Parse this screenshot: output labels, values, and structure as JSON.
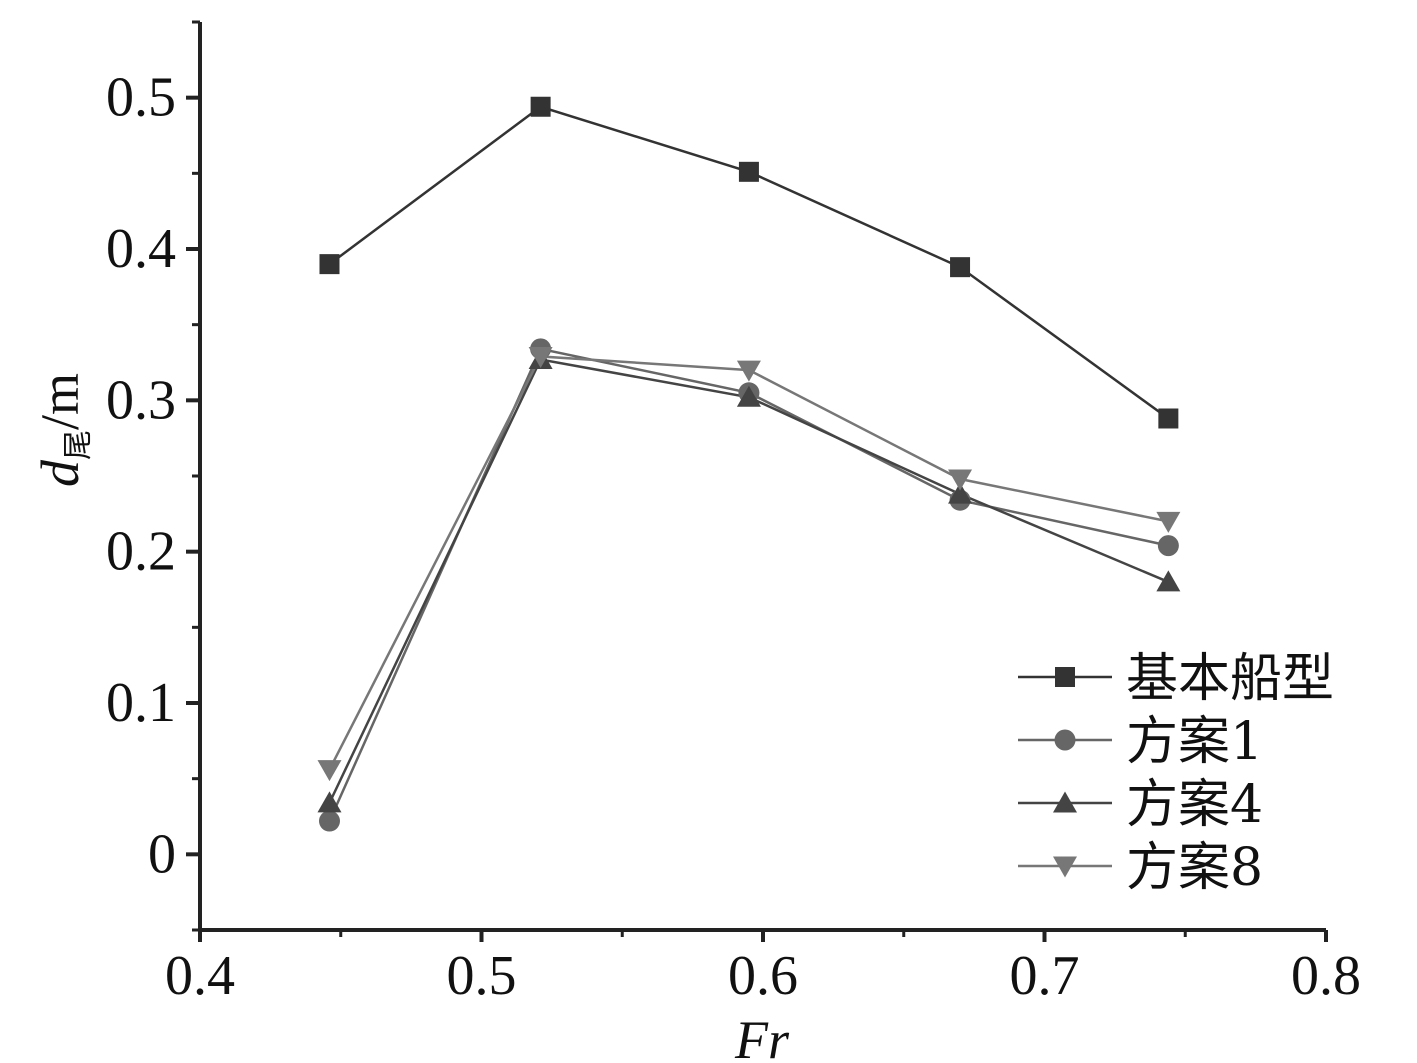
{
  "chart_data": {
    "type": "line",
    "xlabel": "Fr",
    "ylabel": {
      "main": "d",
      "subscript": "尾",
      "unit": "/m"
    },
    "xlim": [
      0.4,
      0.8
    ],
    "ylim": [
      -0.05,
      0.55
    ],
    "xticks": [
      "0.4",
      "0.5",
      "0.6",
      "0.7",
      "0.8"
    ],
    "yticks": [
      "0",
      "0.1",
      "0.2",
      "0.3",
      "0.4",
      "0.5"
    ],
    "x": [
      0.446,
      0.521,
      0.595,
      0.67,
      0.744
    ],
    "series": [
      {
        "name": "基本船型",
        "marker": "square",
        "color": "#333333",
        "values": [
          0.39,
          0.494,
          0.451,
          0.388,
          0.288
        ]
      },
      {
        "name": "方案1",
        "marker": "circle",
        "color": "#666666",
        "values": [
          0.022,
          0.334,
          0.305,
          0.234,
          0.204
        ]
      },
      {
        "name": "方案4",
        "marker": "triangle-up",
        "color": "#444444",
        "values": [
          0.034,
          0.327,
          0.302,
          0.238,
          0.18
        ]
      },
      {
        "name": "方案8",
        "marker": "triangle-down",
        "color": "#777777",
        "values": [
          0.056,
          0.329,
          0.32,
          0.248,
          0.22
        ]
      }
    ],
    "grid": false,
    "legend_position": "bottom-right"
  }
}
